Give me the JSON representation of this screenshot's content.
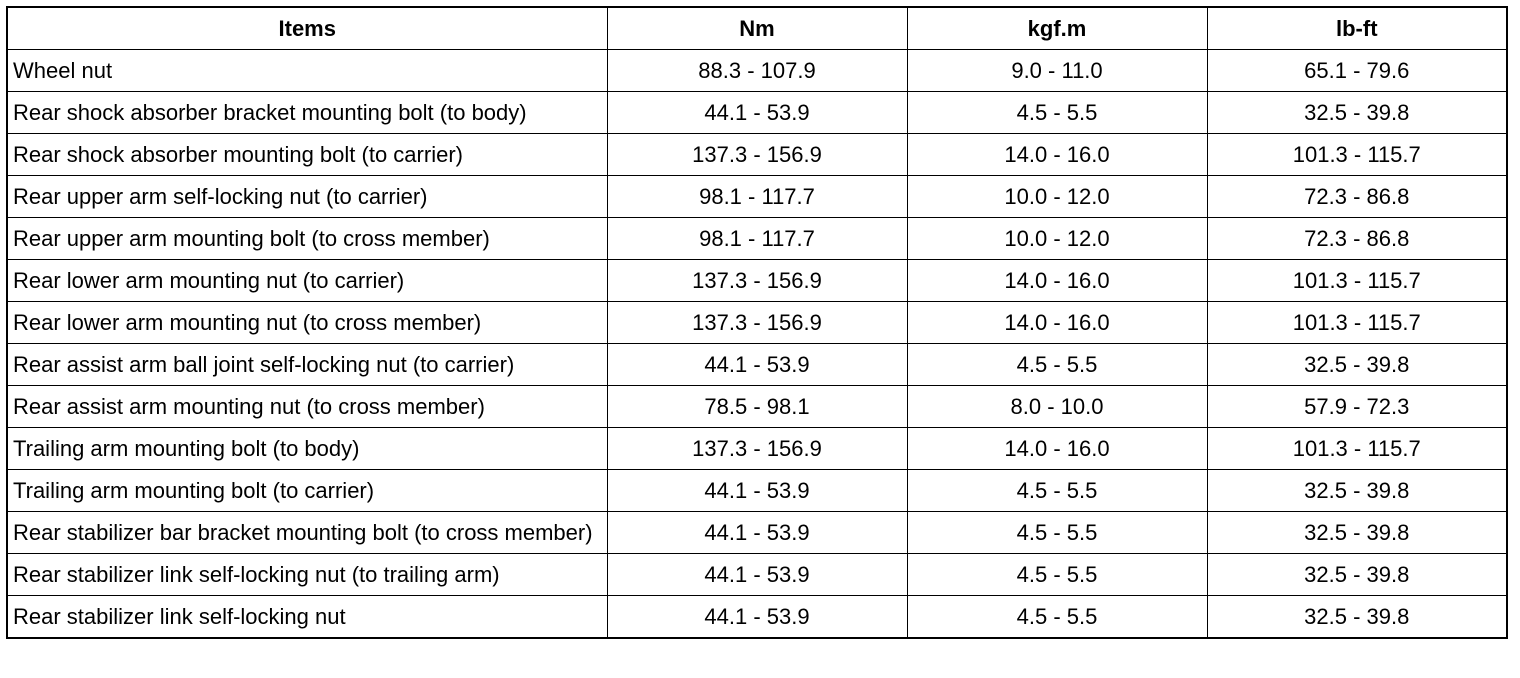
{
  "table": {
    "header": [
      "Items",
      "Nm",
      "kgf.m",
      "lb-ft"
    ],
    "rows": [
      [
        "Wheel nut",
        "88.3 - 107.9",
        "9.0 - 11.0",
        "65.1 - 79.6"
      ],
      [
        "Rear shock absorber bracket mounting bolt (to body)",
        "44.1 - 53.9",
        "4.5 - 5.5",
        "32.5 - 39.8"
      ],
      [
        "Rear shock absorber mounting bolt (to carrier)",
        "137.3 - 156.9",
        "14.0 - 16.0",
        "101.3 - 115.7"
      ],
      [
        "Rear upper arm self-locking nut (to carrier)",
        "98.1 - 117.7",
        "10.0 - 12.0",
        "72.3 - 86.8"
      ],
      [
        "Rear upper arm mounting bolt (to cross member)",
        "98.1 - 117.7",
        "10.0 - 12.0",
        "72.3 - 86.8"
      ],
      [
        "Rear lower arm mounting nut (to carrier)",
        "137.3 - 156.9",
        "14.0 - 16.0",
        "101.3 - 115.7"
      ],
      [
        "Rear lower arm mounting nut (to cross member)",
        "137.3 - 156.9",
        "14.0 - 16.0",
        "101.3 - 115.7"
      ],
      [
        "Rear assist arm ball joint self-locking nut (to carrier)",
        "44.1 - 53.9",
        "4.5 - 5.5",
        "32.5 - 39.8"
      ],
      [
        "Rear assist arm mounting nut (to cross member)",
        "78.5 - 98.1",
        "8.0 - 10.0",
        "57.9 - 72.3"
      ],
      [
        "Trailing arm mounting bolt (to body)",
        "137.3 - 156.9",
        "14.0 - 16.0",
        "101.3 - 115.7"
      ],
      [
        "Trailing arm mounting bolt (to carrier)",
        "44.1 - 53.9",
        "4.5 - 5.5",
        "32.5 - 39.8"
      ],
      [
        "Rear stabilizer bar bracket mounting bolt (to cross member)",
        "44.1 - 53.9",
        "4.5 - 5.5",
        "32.5 - 39.8"
      ],
      [
        "Rear stabilizer link self-locking nut (to trailing arm)",
        "44.1 - 53.9",
        "4.5 - 5.5",
        "32.5 - 39.8"
      ],
      [
        "Rear stabilizer link self-locking nut",
        "44.1 - 53.9",
        "4.5 - 5.5",
        "32.5 - 39.8"
      ]
    ]
  }
}
